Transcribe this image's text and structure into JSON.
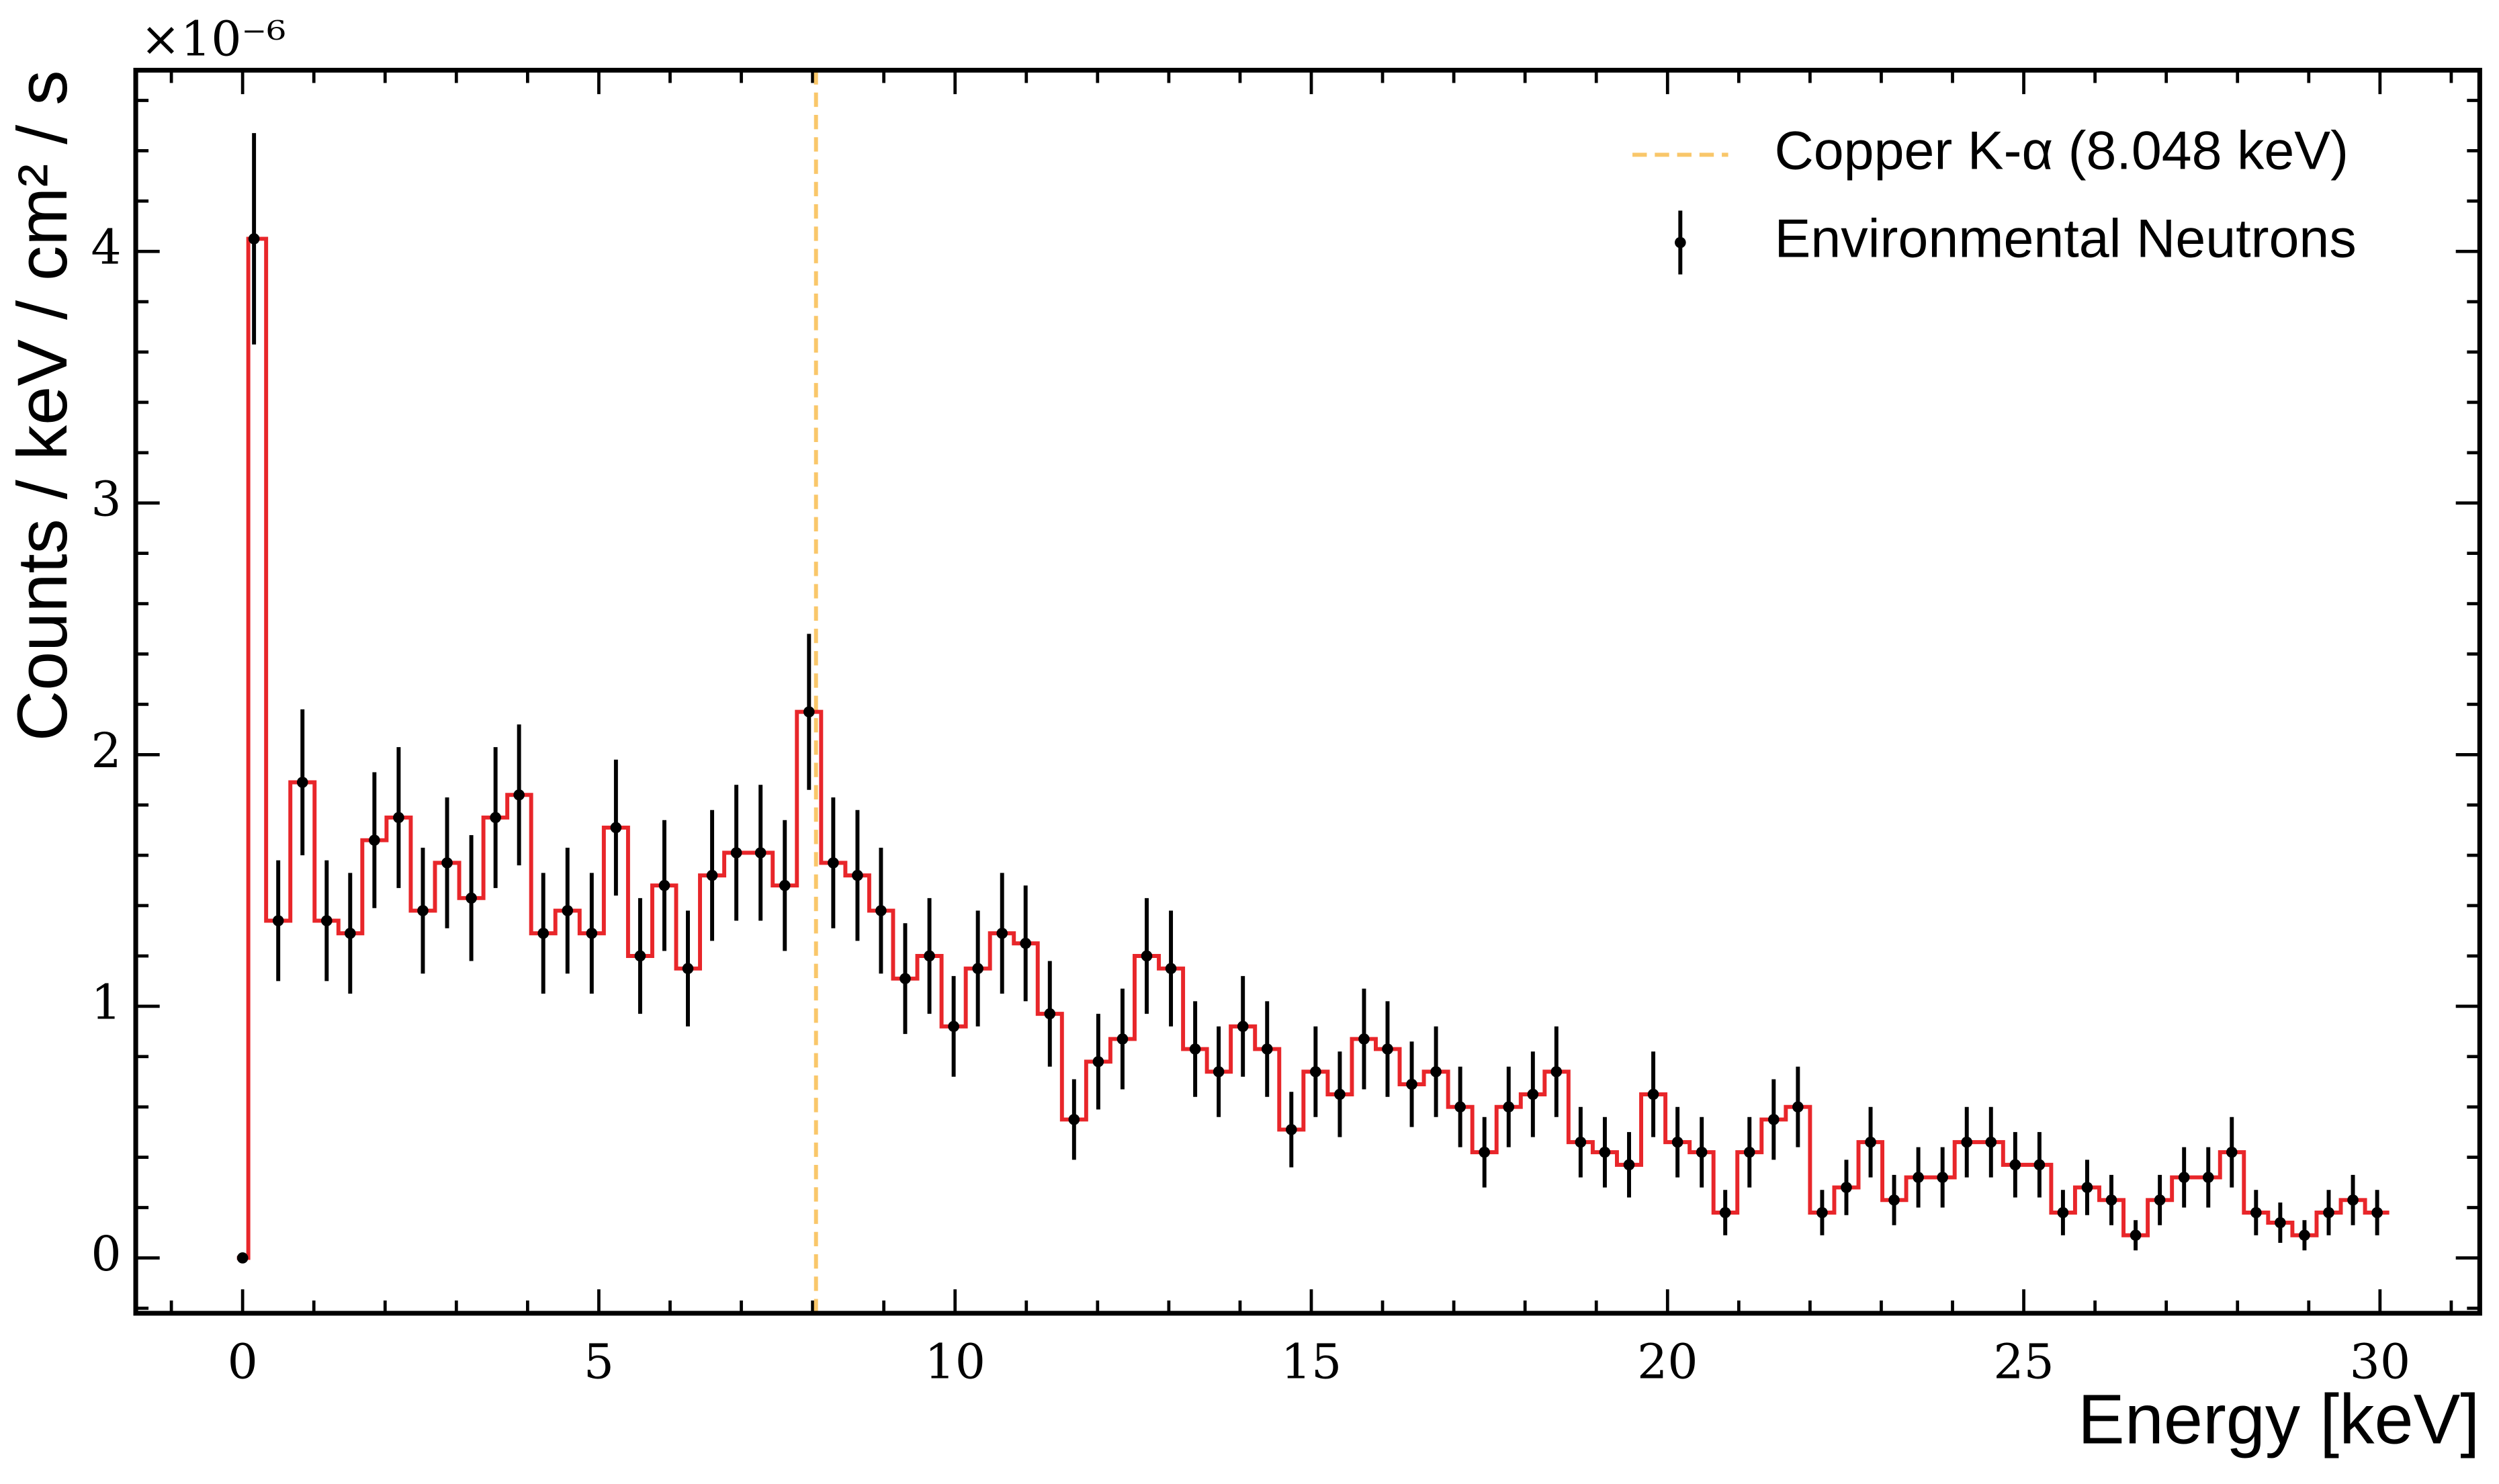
{
  "chart_data": {
    "type": "errorbar_step",
    "y_offset_text": "×10⁻⁶",
    "xlabel": "Energy [keV]",
    "ylabel": "Counts / keV / cm² / s",
    "xlim": [
      -1.5,
      31.4
    ],
    "ylim": [
      -0.22,
      4.72
    ],
    "xticks": [
      0,
      5,
      10,
      15,
      20,
      25,
      30
    ],
    "yticks": [
      0,
      1,
      2,
      3,
      4
    ],
    "xminorticks": [
      -1,
      1,
      2,
      3,
      4,
      6,
      7,
      8,
      9,
      11,
      12,
      13,
      14,
      16,
      17,
      18,
      19,
      21,
      22,
      23,
      24,
      26,
      27,
      28,
      29,
      31
    ],
    "yminorticks": [
      -0.2,
      0.2,
      0.4,
      0.6,
      0.8,
      1.2,
      1.4,
      1.6,
      1.8,
      2.2,
      2.4,
      2.6,
      2.8,
      3.2,
      3.4,
      3.6,
      3.8,
      4.2,
      4.4,
      4.6
    ],
    "legend": "upper right",
    "vlines": [
      {
        "name": "Copper K-α (8.048 keV)",
        "x": 8.048,
        "color": "#f9c76a"
      }
    ],
    "series": [
      {
        "name": "Environmental Neutrons",
        "color": "#000000",
        "step_color": "#e8262a",
        "x": [
          0,
          0.16,
          0.5,
          0.84,
          1.18,
          1.51,
          1.85,
          2.19,
          2.53,
          2.87,
          3.21,
          3.55,
          3.88,
          4.22,
          4.56,
          4.9,
          5.24,
          5.58,
          5.92,
          6.25,
          6.59,
          6.93,
          7.27,
          7.61,
          7.95,
          8.29,
          8.63,
          8.96,
          9.3,
          9.64,
          9.98,
          10.32,
          10.66,
          10.99,
          11.33,
          11.67,
          12.01,
          12.35,
          12.69,
          13.03,
          13.37,
          13.7,
          14.04,
          14.38,
          14.72,
          15.06,
          15.4,
          15.74,
          16.07,
          16.41,
          16.75,
          17.09,
          17.43,
          17.77,
          18.11,
          18.44,
          18.78,
          19.12,
          19.46,
          19.8,
          20.14,
          20.48,
          20.81,
          21.15,
          21.49,
          21.83,
          22.17,
          22.51,
          22.85,
          23.18,
          23.52,
          23.86,
          24.2,
          24.54,
          24.88,
          25.22,
          25.55,
          25.89,
          26.23,
          26.57,
          26.91,
          27.25,
          27.59,
          27.92,
          28.26,
          28.6,
          28.94,
          29.28,
          29.62,
          29.96
        ],
        "values": [
          0,
          4.05,
          1.34,
          1.89,
          1.34,
          1.29,
          1.66,
          1.75,
          1.38,
          1.57,
          1.43,
          1.75,
          1.84,
          1.29,
          1.38,
          1.29,
          1.71,
          1.2,
          1.48,
          1.15,
          1.52,
          1.61,
          1.61,
          1.48,
          2.17,
          1.57,
          1.52,
          1.38,
          1.11,
          1.2,
          0.92,
          1.15,
          1.29,
          1.25,
          0.97,
          0.55,
          0.78,
          0.87,
          1.2,
          1.15,
          0.83,
          0.74,
          0.92,
          0.83,
          0.51,
          0.74,
          0.65,
          0.87,
          0.83,
          0.69,
          0.74,
          0.6,
          0.42,
          0.6,
          0.65,
          0.74,
          0.46,
          0.42,
          0.37,
          0.65,
          0.46,
          0.42,
          0.18,
          0.42,
          0.55,
          0.6,
          0.18,
          0.28,
          0.46,
          0.23,
          0.32,
          0.32,
          0.46,
          0.46,
          0.37,
          0.37,
          0.18,
          0.28,
          0.23,
          0.09,
          0.23,
          0.32,
          0.32,
          0.42,
          0.18,
          0.14,
          0.09,
          0.18,
          0.23,
          0.18
        ],
        "errors": [
          0,
          0.42,
          0.24,
          0.29,
          0.24,
          0.24,
          0.27,
          0.28,
          0.25,
          0.26,
          0.25,
          0.28,
          0.28,
          0.24,
          0.25,
          0.24,
          0.27,
          0.23,
          0.26,
          0.23,
          0.26,
          0.27,
          0.27,
          0.26,
          0.31,
          0.26,
          0.26,
          0.25,
          0.22,
          0.23,
          0.2,
          0.23,
          0.24,
          0.23,
          0.21,
          0.16,
          0.19,
          0.2,
          0.23,
          0.23,
          0.19,
          0.18,
          0.2,
          0.19,
          0.15,
          0.18,
          0.17,
          0.2,
          0.19,
          0.17,
          0.18,
          0.16,
          0.14,
          0.16,
          0.17,
          0.18,
          0.14,
          0.14,
          0.13,
          0.17,
          0.14,
          0.14,
          0.09,
          0.14,
          0.16,
          0.16,
          0.09,
          0.11,
          0.14,
          0.1,
          0.12,
          0.12,
          0.14,
          0.14,
          0.13,
          0.13,
          0.09,
          0.11,
          0.1,
          0.06,
          0.1,
          0.12,
          0.12,
          0.14,
          0.09,
          0.08,
          0.06,
          0.09,
          0.1,
          0.09
        ]
      }
    ]
  }
}
